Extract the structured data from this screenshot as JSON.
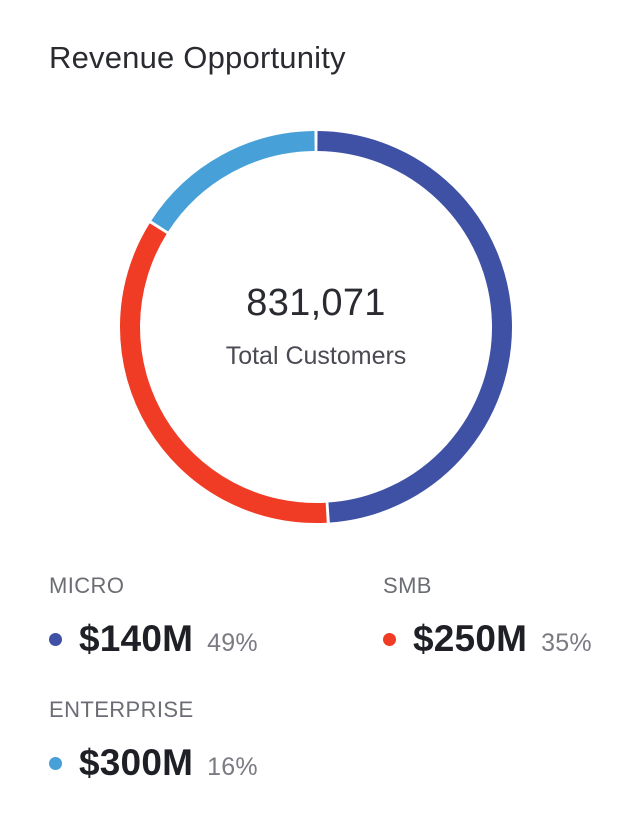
{
  "card": {
    "title": "Revenue Opportunity",
    "center_value": "831,071",
    "center_label": "Total Customers"
  },
  "colors": {
    "micro": "#3f51a5",
    "smb": "#f03b25",
    "enterprise": "#47a0d8"
  },
  "chart_data": {
    "type": "pie",
    "donut": true,
    "title": "Revenue Opportunity",
    "slices": [
      {
        "name": "MICRO",
        "amount": "$140M",
        "percent_label": "49%",
        "value": 49,
        "color": "#3f51a5"
      },
      {
        "name": "SMB",
        "amount": "$250M",
        "percent_label": "35%",
        "value": 35,
        "color": "#f03b25"
      },
      {
        "name": "ENTERPRISE",
        "amount": "$300M",
        "percent_label": "16%",
        "value": 16,
        "color": "#47a0d8"
      }
    ],
    "center_value": "831,071",
    "center_label": "Total Customers"
  },
  "legend": {
    "items": [
      {
        "name": "MICRO",
        "amount": "$140M",
        "percent": "49%"
      },
      {
        "name": "SMB",
        "amount": "$250M",
        "percent": "35%"
      },
      {
        "name": "ENTERPRISE",
        "amount": "$300M",
        "percent": "16%"
      }
    ]
  }
}
